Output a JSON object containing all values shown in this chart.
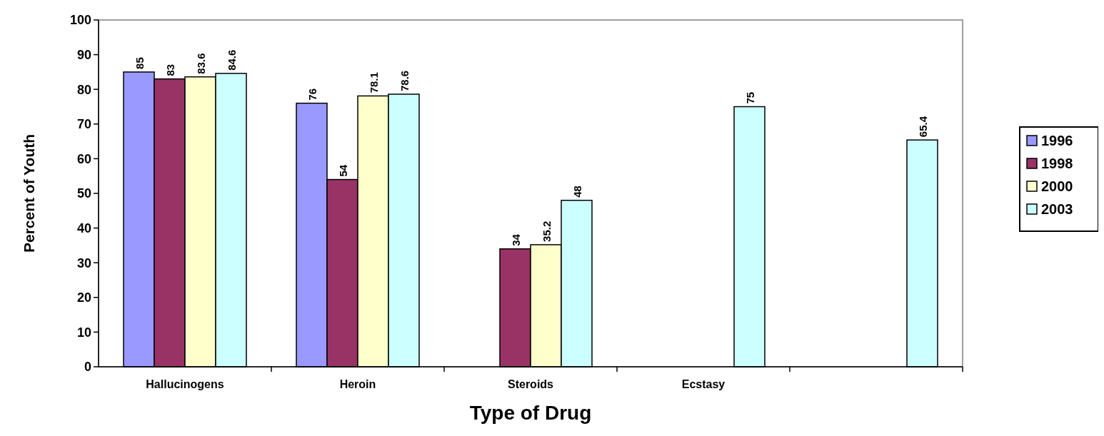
{
  "chart_data": {
    "type": "bar",
    "xlabel": "Type of Drug",
    "ylabel": "Percent of Youth",
    "categories": [
      "Hallucinogens",
      "Heroin",
      "Steroids",
      "Ecstasy",
      null
    ],
    "series": [
      {
        "name": "1996",
        "color": "#9999ff",
        "values": [
          85,
          76,
          null,
          null,
          null
        ]
      },
      {
        "name": "1998",
        "color": "#993366",
        "values": [
          83,
          54,
          34,
          null,
          null
        ]
      },
      {
        "name": "2000",
        "color": "#ffffcc",
        "values": [
          83.6,
          78.1,
          35.2,
          null,
          null
        ]
      },
      {
        "name": "2003",
        "color": "#ccffff",
        "values": [
          84.6,
          78.6,
          48,
          75,
          65.4
        ]
      }
    ],
    "ylim": [
      0,
      100
    ],
    "yticks": [
      0,
      10,
      20,
      30,
      40,
      50,
      60,
      70,
      80,
      90,
      100
    ],
    "data_labels": true,
    "legend": "right",
    "grid": false
  }
}
